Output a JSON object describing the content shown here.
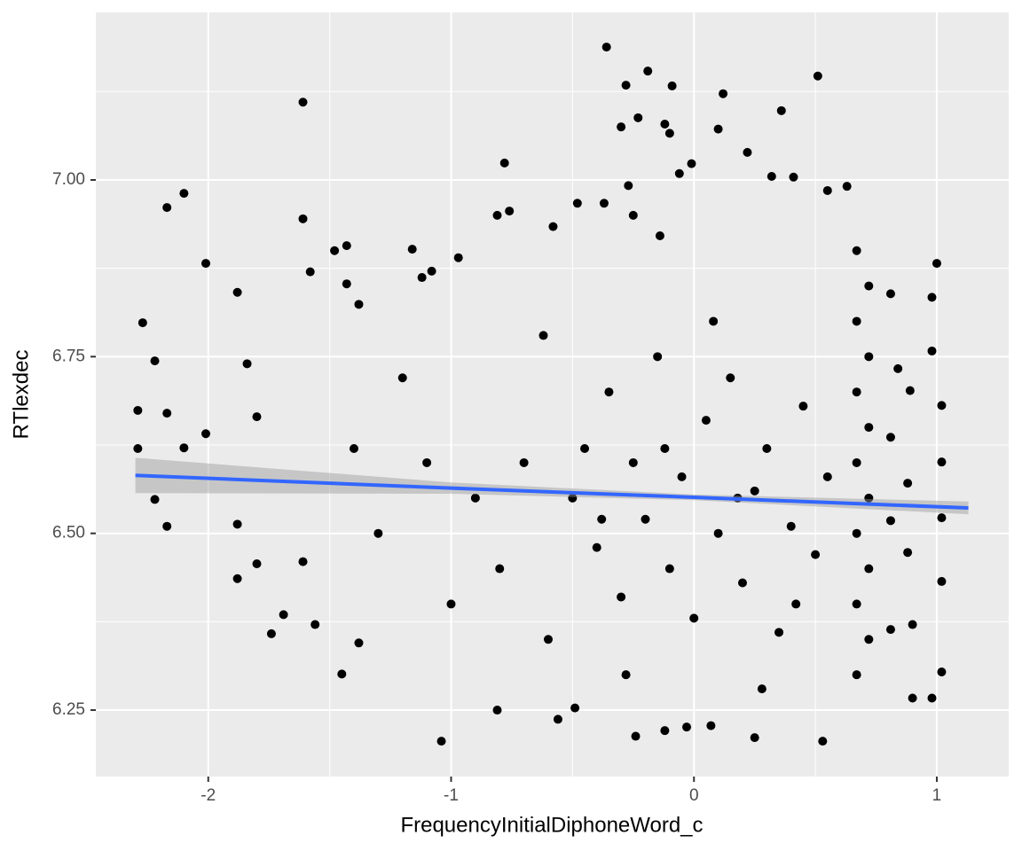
{
  "chart_data": {
    "type": "scatter",
    "xlabel": "FrequencyInitialDiphoneWord_c",
    "ylabel": "RTlexdec",
    "xlim": [
      -2.463,
      1.296
    ],
    "ylim": [
      6.156,
      7.237
    ],
    "xticks": [
      -2,
      -1,
      0,
      1
    ],
    "yticks": [
      {
        "value": 6.25,
        "label": "6.25"
      },
      {
        "value": 6.5,
        "label": "6.50"
      },
      {
        "value": 6.75,
        "label": "6.75"
      },
      {
        "value": 7.0,
        "label": "7.00"
      }
    ],
    "grid": true,
    "minor_grid": true,
    "points": {
      "color": "#000000",
      "x": [
        -2.29,
        -2.29,
        -2.27,
        -2.22,
        -2.17,
        -2.1,
        -2.17,
        -2.22,
        -2.17,
        -2.01,
        -2.01,
        -2.1,
        -1.88,
        -1.84,
        -1.88,
        -1.88,
        -1.8,
        -1.8,
        -1.61,
        -1.61,
        -1.58,
        -1.61,
        -1.56,
        -1.74,
        -1.69,
        -1.48,
        -1.43,
        -1.43,
        -1.38,
        -1.45,
        -1.38,
        -1.16,
        -1.08,
        -1.12,
        -1.04,
        -0.97,
        -0.78,
        -0.76,
        -0.81,
        -0.81,
        -0.36,
        -0.28,
        -0.19,
        -0.09,
        -0.23,
        -0.12,
        -0.3,
        -0.1,
        0.1,
        0.12,
        0.22,
        0.51,
        0.36,
        0.32,
        0.41,
        0.55,
        0.63,
        -0.01,
        -0.06,
        -0.27,
        -0.58,
        -0.48,
        -0.37,
        -0.25,
        -0.14,
        -0.24,
        -0.12,
        -0.03,
        0.07,
        0.25,
        0.53,
        -0.56,
        -0.49,
        1.0,
        0.98,
        0.98,
        1.02,
        1.02,
        1.02,
        1.02,
        1.02,
        0.98,
        0.9,
        0.9,
        0.88,
        0.88,
        0.89,
        0.84,
        0.81,
        0.81,
        0.81,
        0.81,
        -0.5,
        -0.45,
        -0.4,
        -0.35,
        -0.3,
        -0.25,
        -0.2,
        -0.15,
        -0.1,
        -0.05,
        0,
        0.05,
        0.1,
        0.15,
        0.2,
        0.25,
        0.3,
        0.35,
        0.4,
        0.45,
        0.5,
        0.55,
        0.67,
        0.67,
        0.67,
        0.67,
        0.67,
        0.67,
        0.67,
        0.72,
        0.72,
        0.72,
        0.72,
        0.72,
        0.72,
        -0.6,
        -0.7,
        -0.8,
        -0.9,
        -1.0,
        -1.1,
        -1.2,
        -1.3,
        -1.4,
        -0.62,
        -0.28,
        0.08,
        0.28,
        -0.12,
        0.18,
        -0.38,
        0.42
      ],
      "y": [
        6.674,
        6.62,
        6.798,
        6.744,
        6.961,
        6.981,
        6.67,
        6.548,
        6.51,
        6.882,
        6.641,
        6.621,
        6.841,
        6.74,
        6.513,
        6.436,
        6.457,
        6.665,
        7.11,
        6.945,
        6.87,
        6.46,
        6.371,
        6.358,
        6.385,
        6.9,
        6.907,
        6.853,
        6.824,
        6.301,
        6.345,
        6.902,
        6.871,
        6.862,
        6.206,
        6.89,
        7.024,
        6.956,
        6.95,
        6.25,
        7.188,
        7.134,
        7.154,
        7.133,
        7.088,
        7.079,
        7.075,
        7.066,
        7.072,
        7.122,
        7.039,
        7.147,
        7.098,
        7.005,
        7.004,
        6.985,
        6.991,
        7.023,
        7.009,
        6.992,
        6.934,
        6.967,
        6.967,
        6.95,
        6.921,
        6.213,
        6.221,
        6.226,
        6.228,
        6.211,
        6.206,
        6.237,
        6.253,
        6.882,
        6.834,
        6.758,
        6.681,
        6.601,
        6.522,
        6.432,
        6.304,
        6.267,
        6.267,
        6.371,
        6.473,
        6.571,
        6.702,
        6.733,
        6.839,
        6.636,
        6.518,
        6.364,
        6.55,
        6.62,
        6.48,
        6.7,
        6.41,
        6.6,
        6.52,
        6.75,
        6.45,
        6.58,
        6.38,
        6.66,
        6.5,
        6.72,
        6.43,
        6.56,
        6.62,
        6.36,
        6.51,
        6.68,
        6.47,
        6.58,
        6.9,
        6.8,
        6.7,
        6.6,
        6.5,
        6.4,
        6.3,
        6.85,
        6.75,
        6.65,
        6.55,
        6.45,
        6.35,
        6.35,
        6.6,
        6.45,
        6.55,
        6.4,
        6.6,
        6.72,
        6.5,
        6.62,
        6.78,
        6.3,
        6.8,
        6.28,
        6.62,
        6.55,
        6.52,
        6.4
      ]
    },
    "fit": {
      "color": "#3366FF",
      "band_color": "#999999",
      "x": [
        -2.3,
        -1,
        0,
        1.13
      ],
      "y": [
        6.582,
        6.564,
        6.551,
        6.536
      ],
      "lower": [
        6.557,
        6.556,
        6.547,
        6.527
      ],
      "upper": [
        6.607,
        6.572,
        6.555,
        6.545
      ]
    }
  }
}
